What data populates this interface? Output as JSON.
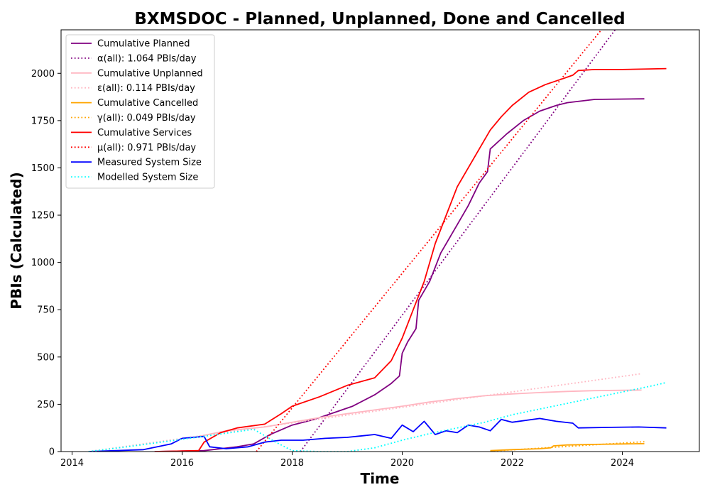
{
  "chart_data": {
    "type": "line",
    "title": "BXMSDOC - Planned, Unplanned, Done  and Cancelled",
    "xlabel": "Time",
    "ylabel": "PBIs (Calculated)",
    "xlim": [
      2013.8,
      2025.4
    ],
    "ylim": [
      0,
      2230
    ],
    "xticks": [
      2014,
      2016,
      2018,
      2020,
      2022,
      2024
    ],
    "yticks": [
      0,
      250,
      500,
      750,
      1000,
      1250,
      1500,
      1750,
      2000
    ],
    "grid": false,
    "legend_position": "top-left",
    "series": [
      {
        "name": "Cumulative Planned",
        "color": "#800080",
        "style": "solid",
        "points": [
          [
            2015.5,
            0
          ],
          [
            2016.4,
            5
          ],
          [
            2016.7,
            15
          ],
          [
            2017.0,
            25
          ],
          [
            2017.3,
            40
          ],
          [
            2017.6,
            90
          ],
          [
            2018.0,
            140
          ],
          [
            2018.4,
            170
          ],
          [
            2018.8,
            210
          ],
          [
            2019.1,
            240
          ],
          [
            2019.5,
            300
          ],
          [
            2019.8,
            360
          ],
          [
            2019.95,
            400
          ],
          [
            2020.0,
            520
          ],
          [
            2020.1,
            580
          ],
          [
            2020.25,
            650
          ],
          [
            2020.3,
            800
          ],
          [
            2020.5,
            900
          ],
          [
            2020.7,
            1050
          ],
          [
            2021.0,
            1200
          ],
          [
            2021.2,
            1300
          ],
          [
            2021.4,
            1420
          ],
          [
            2021.55,
            1480
          ],
          [
            2021.6,
            1600
          ],
          [
            2021.9,
            1680
          ],
          [
            2022.2,
            1750
          ],
          [
            2022.5,
            1800
          ],
          [
            2022.8,
            1830
          ],
          [
            2023.0,
            1845
          ],
          [
            2023.5,
            1862
          ],
          [
            2024.4,
            1865
          ]
        ]
      },
      {
        "name": "α(all): 1.064 PBIs/day",
        "color": "#800080",
        "style": "dotted",
        "points": [
          [
            2018.15,
            0
          ],
          [
            2023.87,
            2230
          ]
        ]
      },
      {
        "name": "Cumulative Unplanned",
        "color": "#ffb6c1",
        "style": "solid",
        "points": [
          [
            2016.3,
            80
          ],
          [
            2016.8,
            110
          ],
          [
            2017.5,
            130
          ],
          [
            2018.0,
            155
          ],
          [
            2018.5,
            180
          ],
          [
            2019.0,
            200
          ],
          [
            2019.5,
            220
          ],
          [
            2020.0,
            240
          ],
          [
            2020.5,
            262
          ],
          [
            2021.0,
            280
          ],
          [
            2021.5,
            295
          ],
          [
            2022.0,
            305
          ],
          [
            2022.5,
            312
          ],
          [
            2023.0,
            318
          ],
          [
            2023.5,
            322
          ],
          [
            2024.35,
            325
          ]
        ]
      },
      {
        "name": "ε(all): 0.114 PBIs/day",
        "color": "#ffb6c1",
        "style": "dotted",
        "points": [
          [
            2014.3,
            0
          ],
          [
            2024.35,
            412
          ]
        ]
      },
      {
        "name": "Cumulative Cancelled",
        "color": "#ffa500",
        "style": "solid",
        "points": [
          [
            2021.6,
            5
          ],
          [
            2022.0,
            10
          ],
          [
            2022.5,
            15
          ],
          [
            2022.7,
            20
          ],
          [
            2022.75,
            30
          ],
          [
            2023.0,
            35
          ],
          [
            2023.5,
            38
          ],
          [
            2024.0,
            40
          ],
          [
            2024.4,
            42
          ]
        ]
      },
      {
        "name": "γ(all): 0.049 PBIs/day",
        "color": "#ffa500",
        "style": "dotted",
        "points": [
          [
            2021.6,
            2
          ],
          [
            2024.4,
            52
          ]
        ]
      },
      {
        "name": "Cumulative Services",
        "color": "#ff0000",
        "style": "solid",
        "points": [
          [
            2015.5,
            0
          ],
          [
            2016.3,
            5
          ],
          [
            2016.4,
            50
          ],
          [
            2016.7,
            100
          ],
          [
            2017.0,
            125
          ],
          [
            2017.5,
            145
          ],
          [
            2017.8,
            200
          ],
          [
            2018.0,
            240
          ],
          [
            2018.5,
            290
          ],
          [
            2019.0,
            350
          ],
          [
            2019.5,
            390
          ],
          [
            2019.8,
            480
          ],
          [
            2020.0,
            600
          ],
          [
            2020.2,
            750
          ],
          [
            2020.4,
            900
          ],
          [
            2020.6,
            1100
          ],
          [
            2020.8,
            1250
          ],
          [
            2021.0,
            1400
          ],
          [
            2021.2,
            1500
          ],
          [
            2021.4,
            1600
          ],
          [
            2021.6,
            1700
          ],
          [
            2021.8,
            1770
          ],
          [
            2022.0,
            1830
          ],
          [
            2022.3,
            1900
          ],
          [
            2022.6,
            1940
          ],
          [
            2022.9,
            1970
          ],
          [
            2023.0,
            1980
          ],
          [
            2023.1,
            1990
          ],
          [
            2023.2,
            2015
          ],
          [
            2023.5,
            2020
          ],
          [
            2024.0,
            2020
          ],
          [
            2024.8,
            2025
          ]
        ]
      },
      {
        "name": "μ(all): 0.971 PBIs/day",
        "color": "#ff0000",
        "style": "dotted",
        "points": [
          [
            2017.35,
            0
          ],
          [
            2023.62,
            2230
          ]
        ]
      },
      {
        "name": "Measured System Size",
        "color": "#0000ff",
        "style": "solid",
        "points": [
          [
            2014.3,
            0
          ],
          [
            2014.8,
            5
          ],
          [
            2015.3,
            10
          ],
          [
            2015.8,
            40
          ],
          [
            2016.0,
            70
          ],
          [
            2016.4,
            80
          ],
          [
            2016.5,
            25
          ],
          [
            2016.8,
            15
          ],
          [
            2017.2,
            25
          ],
          [
            2017.5,
            50
          ],
          [
            2017.8,
            60
          ],
          [
            2018.2,
            60
          ],
          [
            2018.6,
            70
          ],
          [
            2019.0,
            75
          ],
          [
            2019.5,
            90
          ],
          [
            2019.8,
            70
          ],
          [
            2020.0,
            140
          ],
          [
            2020.2,
            105
          ],
          [
            2020.4,
            160
          ],
          [
            2020.6,
            90
          ],
          [
            2020.8,
            110
          ],
          [
            2021.0,
            100
          ],
          [
            2021.2,
            140
          ],
          [
            2021.4,
            130
          ],
          [
            2021.6,
            110
          ],
          [
            2021.8,
            170
          ],
          [
            2022.0,
            155
          ],
          [
            2022.5,
            175
          ],
          [
            2022.8,
            160
          ],
          [
            2023.1,
            150
          ],
          [
            2023.2,
            125
          ],
          [
            2023.8,
            128
          ],
          [
            2024.3,
            130
          ],
          [
            2024.8,
            125
          ]
        ]
      },
      {
        "name": "Modelled System Size",
        "color": "#00ffff",
        "style": "dotted",
        "points": [
          [
            2014.3,
            0
          ],
          [
            2015.0,
            25
          ],
          [
            2015.5,
            45
          ],
          [
            2016.0,
            65
          ],
          [
            2016.5,
            85
          ],
          [
            2017.0,
            105
          ],
          [
            2017.3,
            118
          ],
          [
            2017.7,
            50
          ],
          [
            2018.0,
            5
          ],
          [
            2018.5,
            0
          ],
          [
            2019.0,
            0
          ],
          [
            2019.5,
            20
          ],
          [
            2020.0,
            60
          ],
          [
            2020.5,
            95
          ],
          [
            2021.0,
            125
          ],
          [
            2021.5,
            155
          ],
          [
            2022.0,
            195
          ],
          [
            2022.5,
            225
          ],
          [
            2023.0,
            255
          ],
          [
            2023.5,
            285
          ],
          [
            2024.0,
            315
          ],
          [
            2024.5,
            345
          ],
          [
            2024.8,
            365
          ]
        ]
      }
    ]
  }
}
